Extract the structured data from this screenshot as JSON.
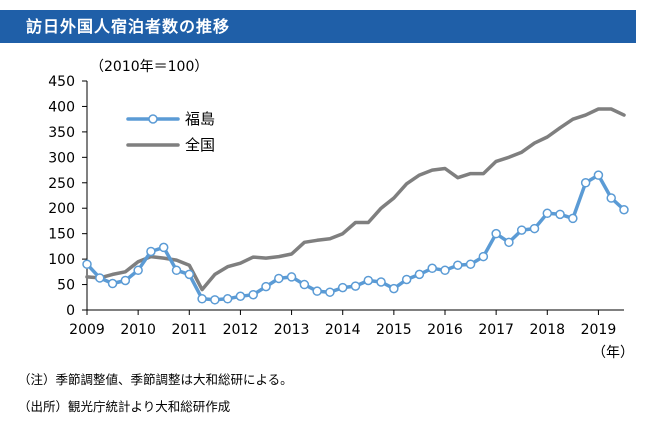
{
  "header": {
    "title": "訪日外国人宿泊者数の推移"
  },
  "notes": {
    "note1": "（注）季節調整値、季節調整は大和総研による。",
    "note2": "（出所）観光庁統計より大和総研作成"
  },
  "colors": {
    "title_bg": "#1f5fa8",
    "fukushima": "#5b9bd5",
    "national": "#7f7f7f"
  },
  "chart_data": {
    "type": "line",
    "ylabel": "（2010年＝100）",
    "x_unit_label": "（年）",
    "ylim": [
      0,
      450
    ],
    "yticks": [
      0,
      50,
      100,
      150,
      200,
      250,
      300,
      350,
      400,
      450
    ],
    "xlim": [
      2009.0,
      2019.5
    ],
    "xticks": [
      2009,
      2010,
      2011,
      2012,
      2013,
      2014,
      2015,
      2016,
      2017,
      2018,
      2019
    ],
    "legend_position": "upper-left",
    "grid": false,
    "series": [
      {
        "name": "福島",
        "color": "#5b9bd5",
        "marker": "circle",
        "points": [
          [
            2009.0,
            90
          ],
          [
            2009.25,
            63
          ],
          [
            2009.5,
            52
          ],
          [
            2009.75,
            58
          ],
          [
            2010.0,
            78
          ],
          [
            2010.25,
            115
          ],
          [
            2010.5,
            123
          ],
          [
            2010.75,
            78
          ],
          [
            2011.0,
            70
          ],
          [
            2011.25,
            22
          ],
          [
            2011.5,
            20
          ],
          [
            2011.75,
            22
          ],
          [
            2012.0,
            27
          ],
          [
            2012.25,
            30
          ],
          [
            2012.5,
            46
          ],
          [
            2012.75,
            62
          ],
          [
            2013.0,
            65
          ],
          [
            2013.25,
            50
          ],
          [
            2013.5,
            37
          ],
          [
            2013.75,
            35
          ],
          [
            2014.0,
            44
          ],
          [
            2014.25,
            47
          ],
          [
            2014.5,
            58
          ],
          [
            2014.75,
            55
          ],
          [
            2015.0,
            42
          ],
          [
            2015.25,
            60
          ],
          [
            2015.5,
            70
          ],
          [
            2015.75,
            82
          ],
          [
            2016.0,
            78
          ],
          [
            2016.25,
            88
          ],
          [
            2016.5,
            90
          ],
          [
            2016.75,
            105
          ],
          [
            2017.0,
            150
          ],
          [
            2017.25,
            133
          ],
          [
            2017.5,
            157
          ],
          [
            2017.75,
            160
          ],
          [
            2018.0,
            190
          ],
          [
            2018.25,
            188
          ],
          [
            2018.5,
            180
          ],
          [
            2018.75,
            250
          ],
          [
            2019.0,
            265
          ],
          [
            2019.25,
            220
          ],
          [
            2019.5,
            197
          ]
        ]
      },
      {
        "name": "全国",
        "color": "#7f7f7f",
        "marker": "none",
        "points": [
          [
            2009.0,
            65
          ],
          [
            2009.25,
            63
          ],
          [
            2009.5,
            70
          ],
          [
            2009.75,
            75
          ],
          [
            2010.0,
            95
          ],
          [
            2010.25,
            105
          ],
          [
            2010.5,
            102
          ],
          [
            2010.75,
            98
          ],
          [
            2011.0,
            88
          ],
          [
            2011.25,
            40
          ],
          [
            2011.5,
            70
          ],
          [
            2011.75,
            85
          ],
          [
            2012.0,
            92
          ],
          [
            2012.25,
            104
          ],
          [
            2012.5,
            102
          ],
          [
            2012.75,
            105
          ],
          [
            2013.0,
            110
          ],
          [
            2013.25,
            133
          ],
          [
            2013.5,
            137
          ],
          [
            2013.75,
            140
          ],
          [
            2014.0,
            150
          ],
          [
            2014.25,
            172
          ],
          [
            2014.5,
            172
          ],
          [
            2014.75,
            200
          ],
          [
            2015.0,
            220
          ],
          [
            2015.25,
            248
          ],
          [
            2015.5,
            265
          ],
          [
            2015.75,
            275
          ],
          [
            2016.0,
            278
          ],
          [
            2016.25,
            260
          ],
          [
            2016.5,
            268
          ],
          [
            2016.75,
            268
          ],
          [
            2017.0,
            292
          ],
          [
            2017.25,
            300
          ],
          [
            2017.5,
            310
          ],
          [
            2017.75,
            328
          ],
          [
            2018.0,
            340
          ],
          [
            2018.25,
            358
          ],
          [
            2018.5,
            375
          ],
          [
            2018.75,
            383
          ],
          [
            2019.0,
            395
          ],
          [
            2019.25,
            395
          ],
          [
            2019.5,
            383
          ]
        ]
      }
    ]
  }
}
